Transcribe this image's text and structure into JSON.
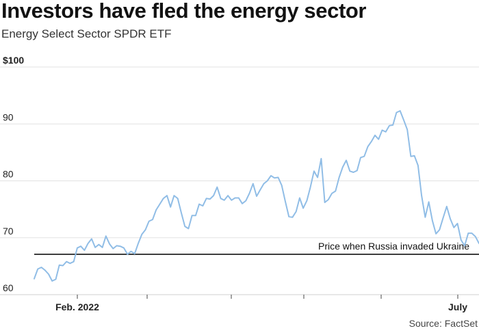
{
  "title": "Investors have fled the energy sector",
  "subtitle": "Energy Select Sector SPDR ETF",
  "source": "Source: FactSet",
  "chart_data": {
    "type": "line",
    "y_tick_labels": [
      "$100",
      "90",
      "80",
      "70",
      "60"
    ],
    "y_ticks": [
      100,
      90,
      80,
      70,
      60
    ],
    "ylim": [
      60,
      100
    ],
    "x_tick_labels": [
      "Feb. 2022",
      "July"
    ],
    "x_minor_ticks": 5,
    "grid": "horizontal",
    "color": "#90bde6",
    "reference_line": {
      "label": "Price when Russia invaded Ukraine",
      "value": 67.1
    },
    "series": [
      {
        "values": [
          62.8,
          64.5,
          64.8,
          64.3,
          63.6,
          62.4,
          62.7,
          65.2,
          65.1,
          65.8,
          65.5,
          65.8,
          68.2,
          68.5,
          67.8,
          69.0,
          69.8,
          68.3,
          68.8,
          68.3,
          70.3,
          68.9,
          68.1,
          68.6,
          68.5,
          68.2,
          67.1,
          67.6,
          67.2,
          69.0,
          70.6,
          71.4,
          72.9,
          73.2,
          74.9,
          75.9,
          76.9,
          77.4,
          75.4,
          77.4,
          76.9,
          74.4,
          72.0,
          71.6,
          73.9,
          73.9,
          75.9,
          75.6,
          76.9,
          76.8,
          77.4,
          78.9,
          76.9,
          76.6,
          77.4,
          76.6,
          77.0,
          77.0,
          76.0,
          76.5,
          77.8,
          79.5,
          77.3,
          78.4,
          79.5,
          80.0,
          80.9,
          80.5,
          80.6,
          79.2,
          76.4,
          73.7,
          73.6,
          74.6,
          77.0,
          75.2,
          76.5,
          78.9,
          81.7,
          80.6,
          83.9,
          76.2,
          76.7,
          77.8,
          78.2,
          80.6,
          82.4,
          83.6,
          81.7,
          81.5,
          81.8,
          84.1,
          84.3,
          86.0,
          86.9,
          88.0,
          87.3,
          88.9,
          88.6,
          89.7,
          89.8,
          92.0,
          92.3,
          90.7,
          89.0,
          84.3,
          84.4,
          82.7,
          77.4,
          73.6,
          76.3,
          73.0,
          70.7,
          71.4,
          73.5,
          75.5,
          73.3,
          71.8,
          72.5,
          69.6,
          68.6,
          70.8,
          70.8,
          70.2,
          69.0
        ]
      }
    ]
  }
}
